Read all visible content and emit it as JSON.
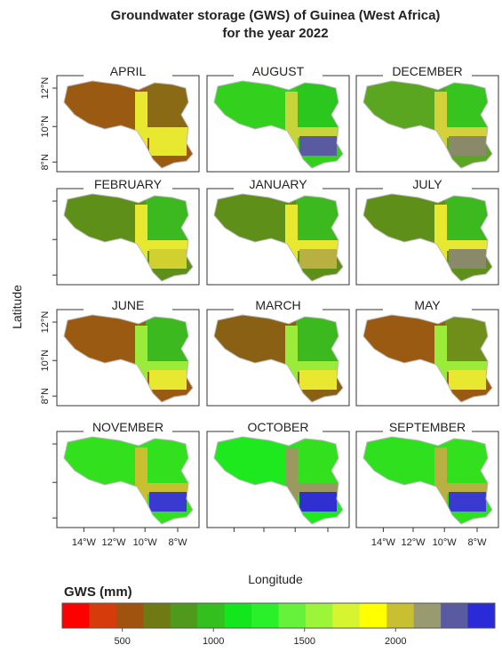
{
  "title": "Groundwater storage (GWS) of Guinea (West Africa)",
  "subtitle": "for the year 2022",
  "panels": [
    {
      "name": "APRIL",
      "colors": [
        "#9b5a12",
        "#8a6a14",
        "#e8e830",
        "#e8e830"
      ]
    },
    {
      "name": "AUGUST",
      "colors": [
        "#33d11e",
        "#2bc61e",
        "#c8d53a",
        "#5a5aa0"
      ]
    },
    {
      "name": "DECEMBER",
      "colors": [
        "#5aa620",
        "#38c41e",
        "#d4d23a",
        "#8a8a6a"
      ]
    },
    {
      "name": "FEBRUARY",
      "colors": [
        "#5e8f18",
        "#3cb91e",
        "#e8e830",
        "#d0d030"
      ]
    },
    {
      "name": "JANUARY",
      "colors": [
        "#5e8f18",
        "#3cb91e",
        "#e8e830",
        "#b8b040"
      ]
    },
    {
      "name": "JULY",
      "colors": [
        "#5e8f18",
        "#3cb91e",
        "#e8e830",
        "#8a8a6a"
      ]
    },
    {
      "name": "JUNE",
      "colors": [
        "#9b5a12",
        "#3cb91e",
        "#9aeb3a",
        "#e8e830"
      ]
    },
    {
      "name": "MARCH",
      "colors": [
        "#8a6014",
        "#3cb91e",
        "#9aeb3a",
        "#e8e830"
      ]
    },
    {
      "name": "MAY",
      "colors": [
        "#9b5a12",
        "#6f8f1a",
        "#9aeb3a",
        "#e8e830"
      ]
    },
    {
      "name": "NOVEMBER",
      "colors": [
        "#33e01e",
        "#33e01e",
        "#c8c030",
        "#3a3ad0"
      ]
    },
    {
      "name": "OCTOBER",
      "colors": [
        "#1ee81e",
        "#33e01e",
        "#9a9a60",
        "#3030d0"
      ]
    },
    {
      "name": "SEPTEMBER",
      "colors": [
        "#2ee01e",
        "#33e01e",
        "#b8b040",
        "#3a3ad0"
      ]
    }
  ],
  "y_axis": {
    "label": "Latitude",
    "ticks": [
      "12°N",
      "10°N",
      "8°N"
    ]
  },
  "x_axis": {
    "label": "Longitude",
    "ticks": [
      "14°W",
      "12°W",
      "10°W",
      "8°W"
    ]
  },
  "colorbar": {
    "title": "GWS (mm)",
    "colors": [
      "#ff0000",
      "#d63b0c",
      "#a0520f",
      "#6f7a14",
      "#4f9a1c",
      "#33c01e",
      "#13e61c",
      "#2af02a",
      "#66f23a",
      "#9df53a",
      "#d6f530",
      "#ffff00",
      "#c8c030",
      "#9a9a70",
      "#5a5aa0",
      "#2a2ad8"
    ],
    "lim": [
      170,
      2545
    ],
    "ticks": [
      500,
      1000,
      1500,
      2000
    ]
  }
}
